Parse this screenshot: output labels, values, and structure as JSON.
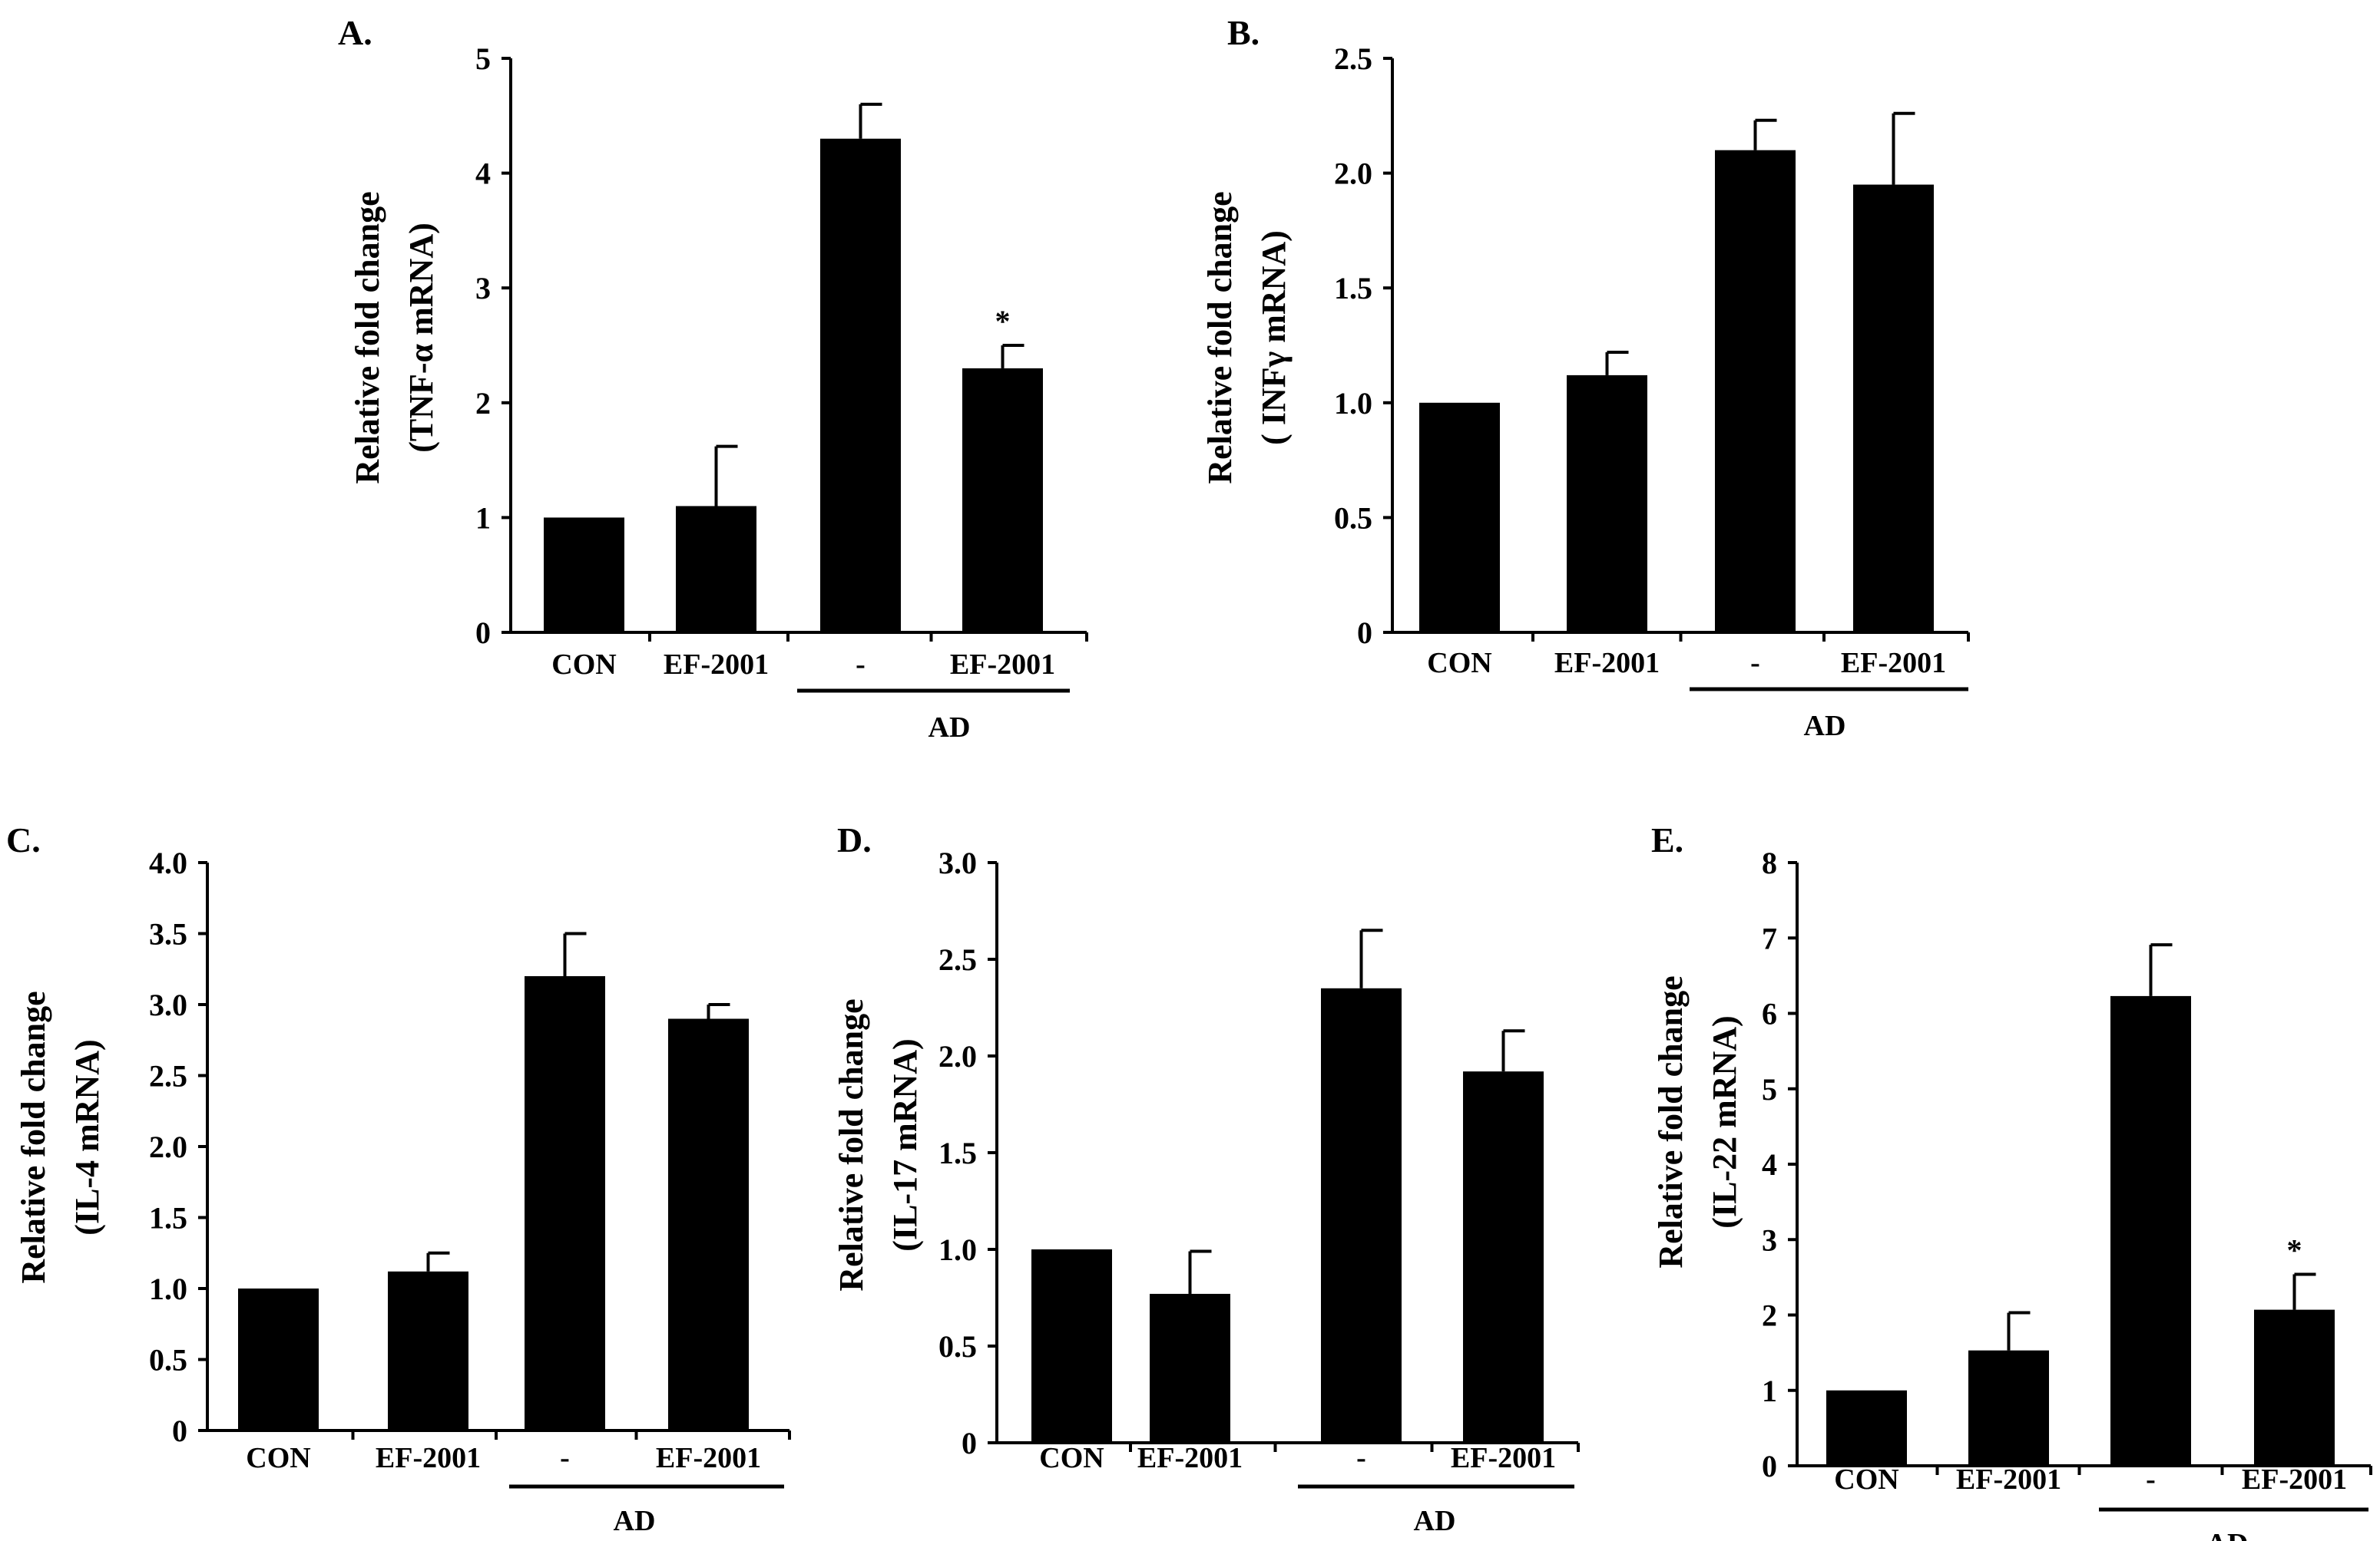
{
  "chart_data": [
    {
      "id": "A",
      "panel_label": "A.",
      "type": "bar",
      "ylabel_line1": "Relative fold change",
      "ylabel_line2": "(TNF-α mRNA)",
      "ylim": [
        0,
        5
      ],
      "yticks": [
        "0",
        "1",
        "2",
        "3",
        "4",
        "5"
      ],
      "categories": [
        "CON",
        "EF-2001",
        "-",
        "EF-2001"
      ],
      "values": [
        1.0,
        1.1,
        4.3,
        2.3
      ],
      "errors": [
        0,
        0.52,
        0.3,
        0.2
      ],
      "significance": [
        "",
        "",
        "",
        "*"
      ],
      "group_label": "AD",
      "group_members": [
        2,
        3
      ]
    },
    {
      "id": "B",
      "panel_label": "B.",
      "type": "bar",
      "ylabel_line1": "Relative fold change",
      "ylabel_line2": "( INFγ mRNA)",
      "ylim": [
        0,
        2.5
      ],
      "yticks": [
        "0",
        "0.5",
        "1.0",
        "1.5",
        "2.0",
        "2.5"
      ],
      "categories": [
        "CON",
        "EF-2001",
        "-",
        "EF-2001"
      ],
      "values": [
        1.0,
        1.12,
        2.1,
        1.95
      ],
      "errors": [
        0,
        0.1,
        0.13,
        0.31
      ],
      "significance": [
        "",
        "",
        "",
        ""
      ],
      "group_label": "AD",
      "group_members": [
        2,
        3
      ]
    },
    {
      "id": "C",
      "panel_label": "C.",
      "type": "bar",
      "ylabel_line1": "Relative fold change",
      "ylabel_line2": "(IL-4 mRNA)",
      "ylim": [
        0,
        4.0
      ],
      "yticks": [
        "0",
        "0.5",
        "1.0",
        "1.5",
        "2.0",
        "2.5",
        "3.0",
        "3.5",
        "4.0"
      ],
      "categories": [
        "CON",
        "EF-2001",
        "-",
        "EF-2001"
      ],
      "values": [
        1.0,
        1.12,
        3.2,
        2.9
      ],
      "errors": [
        0,
        0.13,
        0.3,
        0.1
      ],
      "significance": [
        "",
        "",
        "",
        ""
      ],
      "group_label": "AD",
      "group_members": [
        2,
        3
      ]
    },
    {
      "id": "D",
      "panel_label": "D.",
      "type": "bar",
      "ylabel_line1": "Relative fold change",
      "ylabel_line2": "(IL-17 mRNA)",
      "ylim": [
        0,
        3.0
      ],
      "yticks": [
        "0",
        "0.5",
        "1.0",
        "1.5",
        "2.0",
        "2.5",
        "3.0"
      ],
      "categories": [
        "CON",
        "EF-2001",
        "-",
        "EF-2001"
      ],
      "values": [
        1.0,
        0.77,
        2.35,
        1.92
      ],
      "errors": [
        0,
        0.22,
        0.3,
        0.21
      ],
      "significance": [
        "",
        "",
        "",
        ""
      ],
      "group_label": "AD",
      "group_members": [
        2,
        3
      ]
    },
    {
      "id": "E",
      "panel_label": "E.",
      "type": "bar",
      "ylabel_line1": "Relative fold change",
      "ylabel_line2": "(IL-22 mRNA)",
      "ylim": [
        0,
        8
      ],
      "yticks": [
        "0",
        "1",
        "2",
        "3",
        "4",
        "5",
        "6",
        "7",
        "8"
      ],
      "categories": [
        "CON",
        "EF-2001",
        "-",
        "EF-2001"
      ],
      "values": [
        1.0,
        1.53,
        6.23,
        2.07
      ],
      "errors": [
        0,
        0.5,
        0.68,
        0.47
      ],
      "significance": [
        "",
        "",
        "",
        "*"
      ],
      "group_label": "AD",
      "group_members": [
        2,
        3
      ]
    }
  ]
}
